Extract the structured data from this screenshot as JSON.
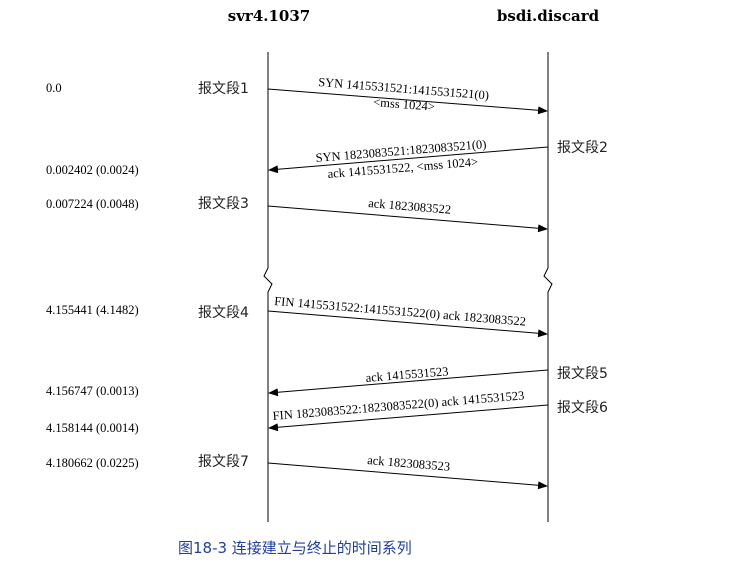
{
  "hosts": {
    "left": "svr4.1037",
    "right": "bsdi.discard"
  },
  "times": [
    "0.0",
    "0.002402 (0.0024)",
    "0.007224 (0.0048)",
    "4.155441 (4.1482)",
    "4.156747 (0.0013)",
    "4.158144 (0.0014)",
    "4.180662 (0.0225)"
  ],
  "segments": [
    "报文段1",
    "报文段2",
    "报文段3",
    "报文段4",
    "报文段5",
    "报文段6",
    "报文段7"
  ],
  "messages": [
    {
      "line1": "SYN  1415531521:1415531521(0)",
      "line2": "<mss 1024>"
    },
    {
      "line1": "SYN  1823083521:1823083521(0)",
      "line2": "ack 1415531522, <mss 1024>"
    },
    {
      "line1": "ack 1823083522",
      "line2": ""
    },
    {
      "line1": "FIN  1415531522:1415531522(0) ack 1823083522",
      "line2": ""
    },
    {
      "line1": "ack 1415531523",
      "line2": ""
    },
    {
      "line1": "FIN  1823083522:1823083522(0) ack 1415531523",
      "line2": ""
    },
    {
      "line1": "ack 1823083523",
      "line2": ""
    }
  ],
  "caption": "图18-3   连接建立与终止的时间系列"
}
